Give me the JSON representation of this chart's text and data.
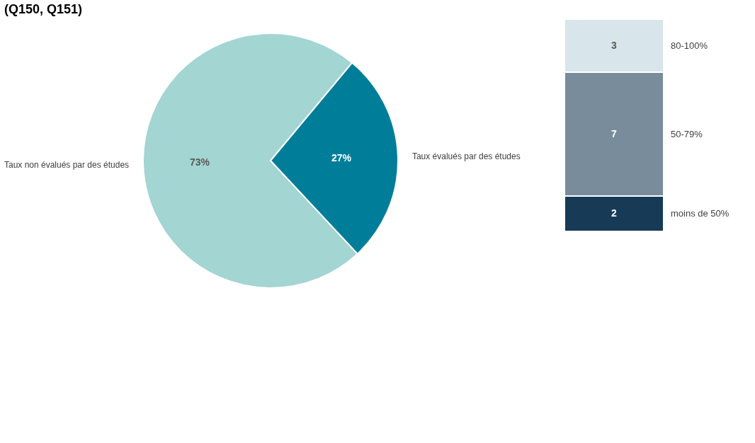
{
  "chart_data": [
    {
      "type": "pie",
      "title": "(Q150, Q151)",
      "categories": [
        "Taux non évalués par des études",
        "Taux évalués par des études"
      ],
      "values": [
        73,
        27
      ],
      "colors": [
        "#a3d5d2",
        "#007e99"
      ],
      "value_labels": [
        "73%",
        "27%"
      ],
      "legend": false
    },
    {
      "type": "bar",
      "stacked": true,
      "categories": [
        null
      ],
      "data_labels": true,
      "legend": false,
      "series": [
        {
          "name": "moins de 50%",
          "color": "#173a56",
          "values": [
            2
          ]
        },
        {
          "name": "50-79%",
          "color": "#788c9c",
          "values": [
            7
          ]
        },
        {
          "name": "80-100%",
          "color": "#d8e5ea",
          "values": [
            3
          ]
        }
      ]
    }
  ]
}
